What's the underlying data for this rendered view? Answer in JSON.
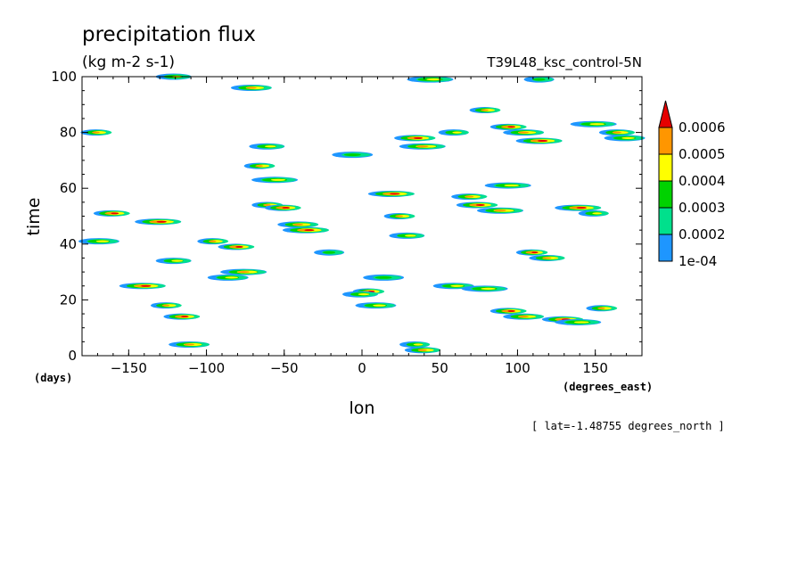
{
  "chart_data": {
    "type": "heatmap",
    "title": "precipitation flux",
    "units": "(kg m-2 s-1)",
    "experiment": "T39L48_ksc_control-5N",
    "xlabel": "lon",
    "xunits": "(degrees_east)",
    "ylabel": "time",
    "yunits": "(days)",
    "footer": "[ lat=-1.48755 degrees_north ]",
    "xlim": [
      -180,
      180
    ],
    "ylim": [
      0,
      100
    ],
    "x_ticks": [
      -150,
      -100,
      -50,
      0,
      50,
      100,
      150
    ],
    "y_ticks": [
      0,
      20,
      40,
      60,
      80,
      100
    ],
    "colorbar": {
      "levels": [
        "1e-04",
        "0.0002",
        "0.0003",
        "0.0004",
        "0.0005",
        "0.0006"
      ],
      "colors": [
        "#1e96ff",
        "#00e08c",
        "#00d200",
        "#ffff00",
        "#ff9600",
        "#e60000"
      ]
    },
    "patches": [
      {
        "lon": -170,
        "t": 80,
        "v": 4
      },
      {
        "lon": -160,
        "t": 51,
        "v": 5
      },
      {
        "lon": -168,
        "t": 41,
        "v": 3
      },
      {
        "lon": -140,
        "t": 25,
        "v": 5
      },
      {
        "lon": -125,
        "t": 18,
        "v": 4
      },
      {
        "lon": -115,
        "t": 14,
        "v": 5
      },
      {
        "lon": -110,
        "t": 4,
        "v": 4
      },
      {
        "lon": -130,
        "t": 48,
        "v": 5
      },
      {
        "lon": -95,
        "t": 41,
        "v": 4
      },
      {
        "lon": -80,
        "t": 39,
        "v": 5
      },
      {
        "lon": -85,
        "t": 28,
        "v": 3
      },
      {
        "lon": -75,
        "t": 30,
        "v": 4
      },
      {
        "lon": -60,
        "t": 54,
        "v": 4
      },
      {
        "lon": -50,
        "t": 53,
        "v": 5
      },
      {
        "lon": -40,
        "t": 47,
        "v": 4
      },
      {
        "lon": -35,
        "t": 45,
        "v": 5
      },
      {
        "lon": -65,
        "t": 68,
        "v": 4
      },
      {
        "lon": -60,
        "t": 75,
        "v": 3
      },
      {
        "lon": -70,
        "t": 96,
        "v": 4
      },
      {
        "lon": -55,
        "t": 63,
        "v": 3
      },
      {
        "lon": 5,
        "t": 23,
        "v": 5
      },
      {
        "lon": 0,
        "t": 22,
        "v": 3
      },
      {
        "lon": 10,
        "t": 18,
        "v": 3
      },
      {
        "lon": 20,
        "t": 58,
        "v": 5
      },
      {
        "lon": 25,
        "t": 50,
        "v": 4
      },
      {
        "lon": 30,
        "t": 43,
        "v": 3
      },
      {
        "lon": 35,
        "t": 78,
        "v": 5
      },
      {
        "lon": 40,
        "t": 75,
        "v": 4
      },
      {
        "lon": 60,
        "t": 80,
        "v": 3
      },
      {
        "lon": 70,
        "t": 57,
        "v": 4
      },
      {
        "lon": 75,
        "t": 54,
        "v": 5
      },
      {
        "lon": 90,
        "t": 52,
        "v": 4
      },
      {
        "lon": 80,
        "t": 88,
        "v": 4
      },
      {
        "lon": 95,
        "t": 82,
        "v": 5
      },
      {
        "lon": 105,
        "t": 80,
        "v": 4
      },
      {
        "lon": 115,
        "t": 77,
        "v": 5
      },
      {
        "lon": 110,
        "t": 37,
        "v": 5
      },
      {
        "lon": 120,
        "t": 35,
        "v": 4
      },
      {
        "lon": 130,
        "t": 13,
        "v": 5
      },
      {
        "lon": 140,
        "t": 12,
        "v": 3
      },
      {
        "lon": 155,
        "t": 17,
        "v": 4
      },
      {
        "lon": 95,
        "t": 16,
        "v": 5
      },
      {
        "lon": 105,
        "t": 14,
        "v": 4
      },
      {
        "lon": 140,
        "t": 53,
        "v": 5
      },
      {
        "lon": 150,
        "t": 51,
        "v": 3
      },
      {
        "lon": 165,
        "t": 80,
        "v": 4
      },
      {
        "lon": 170,
        "t": 78,
        "v": 3
      },
      {
        "lon": 150,
        "t": 83,
        "v": 3
      },
      {
        "lon": 35,
        "t": 4,
        "v": 3
      },
      {
        "lon": 40,
        "t": 2,
        "v": 4
      },
      {
        "lon": -5,
        "t": 72,
        "v": 2
      },
      {
        "lon": 45,
        "t": 99,
        "v": 3
      },
      {
        "lon": 115,
        "t": 99,
        "v": 2
      },
      {
        "lon": -120,
        "t": 100,
        "v": 3
      },
      {
        "lon": 60,
        "t": 25,
        "v": 3
      },
      {
        "lon": 80,
        "t": 24,
        "v": 3
      },
      {
        "lon": -20,
        "t": 37,
        "v": 2
      },
      {
        "lon": -120,
        "t": 34,
        "v": 3
      },
      {
        "lon": 15,
        "t": 28,
        "v": 2
      },
      {
        "lon": 95,
        "t": 61,
        "v": 3
      }
    ]
  }
}
